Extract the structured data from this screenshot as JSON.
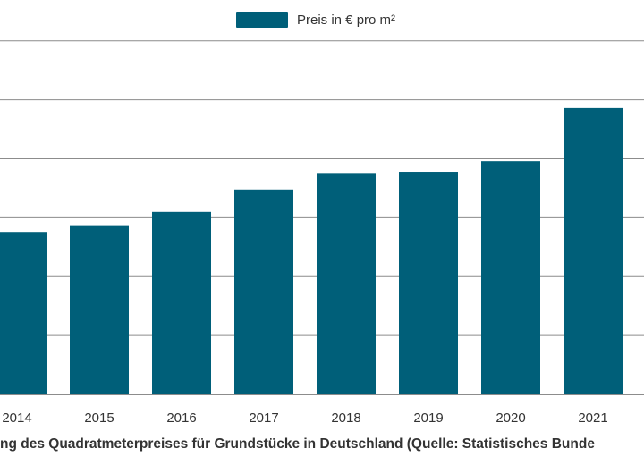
{
  "chart_data": {
    "type": "bar",
    "categories": [
      "2014",
      "2015",
      "2016",
      "2017",
      "2018",
      "2019",
      "2020",
      "2021"
    ],
    "series": [
      {
        "name": "Preis in € pro m²",
        "values": [
          138,
          143,
          155,
          174,
          188,
          189,
          198,
          243
        ]
      }
    ],
    "ylim": [
      0,
      300
    ],
    "grid": true,
    "legend": "top-center",
    "bar_color": "#005f79",
    "caption": "ng des Quadratmeterpreises für Grundstücke in Deutschland (Quelle: Statistisches Bunde"
  }
}
